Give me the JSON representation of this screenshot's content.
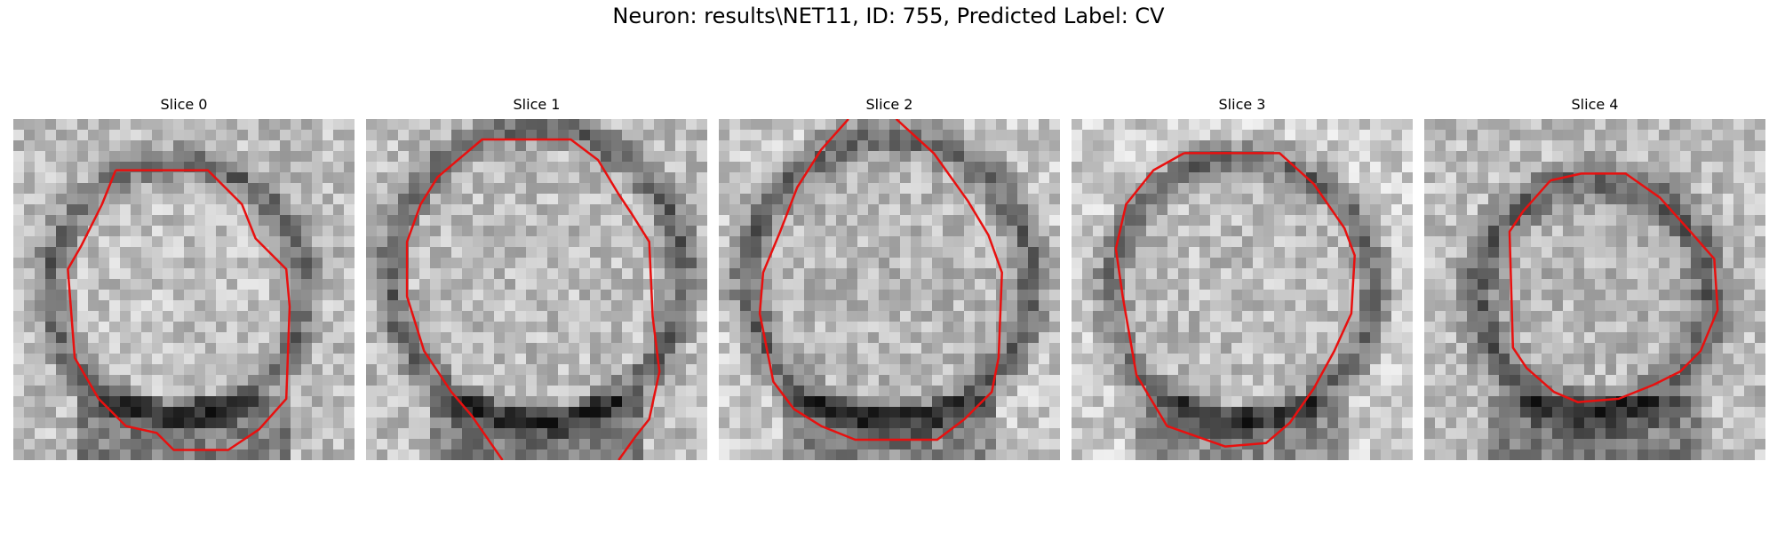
{
  "figure": {
    "title": "Neuron: results\\NET11, ID: 755, Predicted Label: CV",
    "contour_color": "#e8100f",
    "colormap": "grayscale",
    "panels": [
      {
        "title": "Slice 0"
      },
      {
        "title": "Slice 1"
      },
      {
        "title": "Slice 2"
      },
      {
        "title": "Slice 3"
      },
      {
        "title": "Slice 4"
      }
    ]
  }
}
